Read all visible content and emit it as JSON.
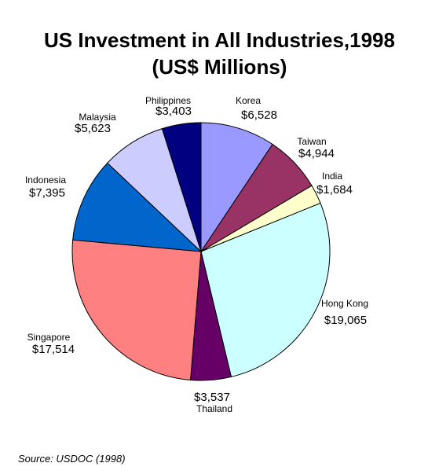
{
  "chart_data": {
    "type": "pie",
    "title": "US Investment in All Industries,1998",
    "subtitle": "(US$ Millions)",
    "slices": [
      {
        "name": "Korea",
        "value": 6528,
        "label": "$6,528",
        "color": "#9999ff"
      },
      {
        "name": "Taiwan",
        "value": 4944,
        "label": "$4,944",
        "color": "#993366"
      },
      {
        "name": "India",
        "value": 1684,
        "label": "$1,684",
        "color": "#ffffcc"
      },
      {
        "name": "Hong Kong",
        "value": 19065,
        "label": "$19,065",
        "color": "#ccffff"
      },
      {
        "name": "Thailand",
        "value": 3537,
        "label": "$3,537",
        "color": "#660066"
      },
      {
        "name": "Singapore",
        "value": 17514,
        "label": "$17,514",
        "color": "#ff8080"
      },
      {
        "name": "Indonesia",
        "value": 7395,
        "label": "$7,395",
        "color": "#0066cc"
      },
      {
        "name": "Malaysia",
        "value": 5623,
        "label": "$5,623",
        "color": "#ccccff"
      },
      {
        "name": "Philippines",
        "value": 3403,
        "label": "$3,403",
        "color": "#000080"
      }
    ]
  },
  "source": "Source:  USDOC (1998)"
}
